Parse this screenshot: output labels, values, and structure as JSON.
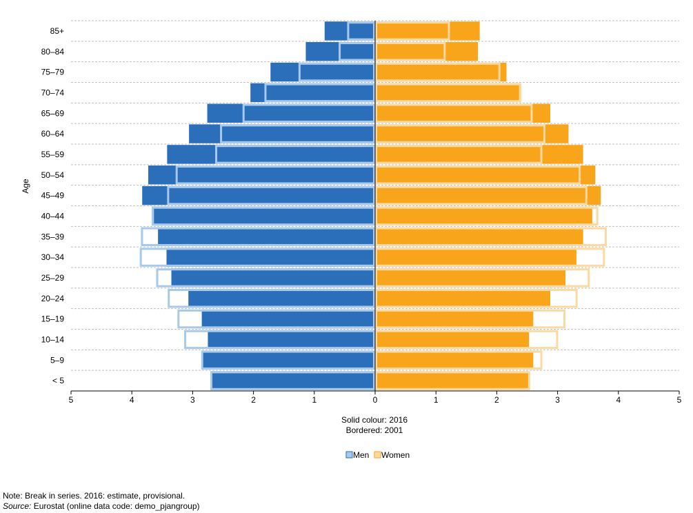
{
  "chart_data": {
    "type": "bar",
    "orientation": "horizontal",
    "title": "",
    "ylabel": "Age",
    "xlabel_lines": [
      "Solid colour: 2016",
      "Bordered: 2001"
    ],
    "xlim": [
      -5,
      5
    ],
    "xticks": [
      5,
      4,
      3,
      2,
      1,
      0,
      1,
      2,
      3,
      4,
      5
    ],
    "categories": [
      "85+",
      "80–84",
      "75–79",
      "70–74",
      "65–69",
      "60–64",
      "55–59",
      "50–54",
      "45–49",
      "40–44",
      "35–39",
      "30–34",
      "25–29",
      "20–24",
      "15–19",
      "10–14",
      "5–9",
      "< 5"
    ],
    "grid": "horizontal",
    "legend": {
      "position": "bottom-center",
      "items": [
        "Men",
        "Women"
      ]
    },
    "colors": {
      "men_2016": "#2b6eb9",
      "women_2016": "#f9a51c",
      "men_2001": "#a7c9ec",
      "women_2001": "#fbd9a0",
      "grid": "#bfbfbf"
    },
    "series": [
      {
        "name": "Men",
        "year": 2016,
        "style": "solid",
        "values": [
          0.83,
          1.14,
          1.72,
          2.05,
          2.76,
          3.06,
          3.42,
          3.73,
          3.83,
          3.67,
          3.57,
          3.43,
          3.35,
          3.07,
          2.85,
          2.75,
          2.85,
          2.7
        ]
      },
      {
        "name": "Men",
        "year": 2001,
        "style": "bordered",
        "values": [
          0.46,
          0.6,
          1.26,
          1.82,
          2.18,
          2.55,
          2.63,
          3.28,
          3.42,
          3.67,
          3.85,
          3.87,
          3.6,
          3.41,
          3.25,
          3.14,
          2.86,
          2.71
        ]
      },
      {
        "name": "Women",
        "year": 2016,
        "style": "solid",
        "values": [
          1.72,
          1.69,
          2.16,
          2.4,
          2.88,
          3.18,
          3.42,
          3.62,
          3.71,
          3.57,
          3.42,
          3.31,
          3.13,
          2.88,
          2.6,
          2.53,
          2.6,
          2.53
        ]
      },
      {
        "name": "Women",
        "year": 2001,
        "style": "bordered",
        "values": [
          1.23,
          1.16,
          2.06,
          2.4,
          2.59,
          2.8,
          2.75,
          3.38,
          3.49,
          3.67,
          3.81,
          3.78,
          3.53,
          3.33,
          3.13,
          3.01,
          2.75,
          2.55
        ]
      }
    ]
  },
  "notes": {
    "note": "Note: Break in series. 2016: estimate, provisional.",
    "source_label": "Source:",
    "source_text": " Eurostat (online data code: demo_pjangroup)"
  }
}
